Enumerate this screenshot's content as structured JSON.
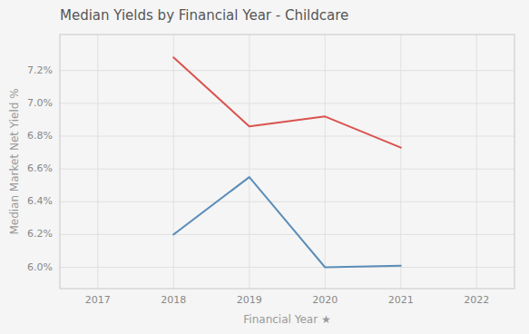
{
  "chart_data": {
    "type": "line",
    "title": "Median Yields by Financial Year - Childcare",
    "xlabel": "Financial Year ★",
    "ylabel": "Median Market Net Yield %",
    "x": [
      2018,
      2019,
      2020,
      2021
    ],
    "series": [
      {
        "color": "#d9534f",
        "values": [
          7.28,
          6.86,
          6.92,
          6.73
        ]
      },
      {
        "color": "#5b8db8",
        "values": [
          6.2,
          6.55,
          6.0,
          6.01
        ]
      }
    ],
    "xlim": [
      2016.5,
      2022.5
    ],
    "ylim": [
      5.87,
      7.42
    ],
    "xticks": [
      2017,
      2018,
      2019,
      2020,
      2021,
      2022
    ],
    "yticks": [
      {
        "value": 6.0,
        "label": "6.0%"
      },
      {
        "value": 6.2,
        "label": "6.2%"
      },
      {
        "value": 6.4,
        "label": "6.4%"
      },
      {
        "value": 6.6,
        "label": "6.6%"
      },
      {
        "value": 6.8,
        "label": "6.8%"
      },
      {
        "value": 7.0,
        "label": "7.0%"
      },
      {
        "value": 7.2,
        "label": "7.2%"
      }
    ],
    "grid": true
  }
}
